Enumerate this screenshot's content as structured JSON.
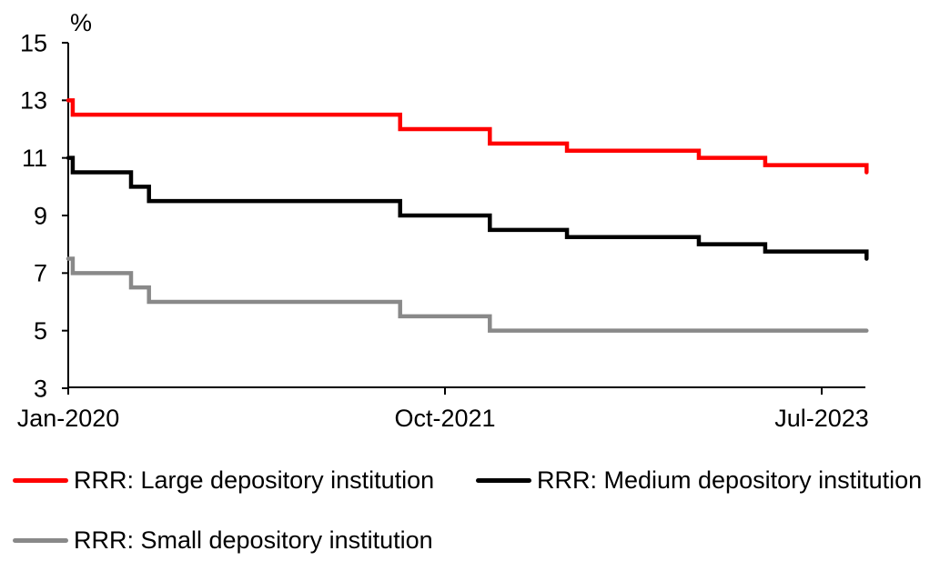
{
  "chart_data": {
    "type": "line",
    "line_style": "step",
    "title": "",
    "xlabel": "",
    "ylabel": "",
    "y_unit_label": "%",
    "grid": false,
    "legend_position": "bottom-left",
    "ylim": [
      3,
      15
    ],
    "y_ticks": [
      "3",
      "5",
      "7",
      "9",
      "11",
      "13",
      "15"
    ],
    "x_range_months_from_jan2020": [
      0,
      44.5
    ],
    "x_ticks": [
      {
        "label": "Jan-2020",
        "month": 0
      },
      {
        "label": "Oct-2021",
        "month": 21
      },
      {
        "label": "Jul-2023",
        "month": 42
      }
    ],
    "axis_color": "#000000",
    "series": [
      {
        "name": "RRR: Large depository institution",
        "color": "#FF0000",
        "points_month_value": [
          [
            0,
            13
          ],
          [
            0.25,
            12.5
          ],
          [
            18.5,
            12
          ],
          [
            23.5,
            11.5
          ],
          [
            27.8,
            11.25
          ],
          [
            35.15,
            11
          ],
          [
            38.85,
            10.75
          ],
          [
            44.5,
            10.5
          ]
        ]
      },
      {
        "name": "RRR: Medium depository institution",
        "color": "#000000",
        "points_month_value": [
          [
            0,
            11
          ],
          [
            0.25,
            10.5
          ],
          [
            3.5,
            10
          ],
          [
            4.5,
            9.5
          ],
          [
            18.5,
            9
          ],
          [
            23.5,
            8.5
          ],
          [
            27.8,
            8.25
          ],
          [
            35.15,
            8
          ],
          [
            38.85,
            7.75
          ],
          [
            44.5,
            7.5
          ]
        ]
      },
      {
        "name": "RRR: Small depository institution",
        "color": "#898989",
        "points_month_value": [
          [
            0,
            7.5
          ],
          [
            0.25,
            7
          ],
          [
            3.5,
            6.5
          ],
          [
            4.5,
            6
          ],
          [
            18.5,
            5.5
          ],
          [
            23.5,
            5
          ],
          [
            44.5,
            5
          ]
        ]
      }
    ]
  }
}
